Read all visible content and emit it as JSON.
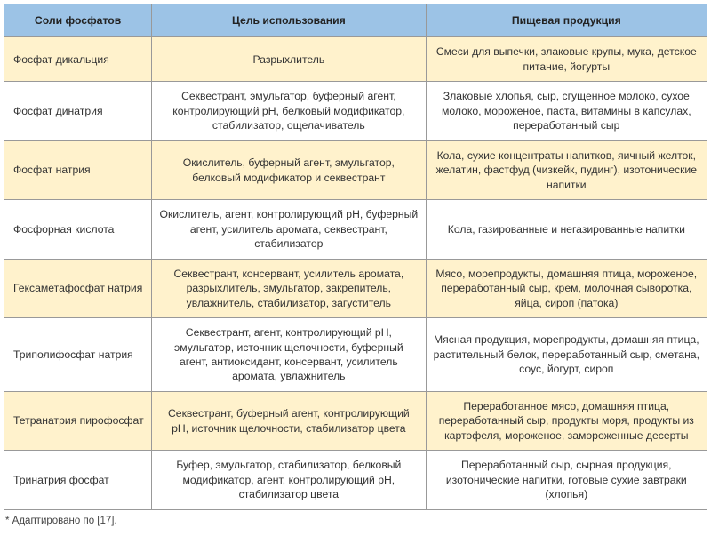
{
  "table": {
    "headers": [
      "Соли фосфатов",
      "Цель использования",
      "Пищевая продукция"
    ],
    "header_bg": "#9cc3e6",
    "row_bg_odd": "#fff2cc",
    "row_bg_even": "#ffffff",
    "border_color": "#999999",
    "font_size": 12.2,
    "column_widths_pct": [
      21,
      39,
      40
    ],
    "rows": [
      {
        "name": "Фосфат дикальция",
        "purpose": "Разрыхлитель",
        "products": "Смеси для выпечки, злаковые крупы, мука, детское питание, йогурты"
      },
      {
        "name": "Фосфат динатрия",
        "purpose": "Секвестрант, эмульгатор, буферный агент, контролирующий pH, белковый модификатор, стабилизатор, ощелачиватель",
        "products": "Злаковые хлопья, сыр, сгущенное молоко, сухое молоко, мороженое, паста, витамины в капсулах, переработанный сыр"
      },
      {
        "name": "Фосфат натрия",
        "purpose": "Окислитель, буферный агент, эмульгатор, белковый модификатор и секвестрант",
        "products": "Кола, сухие концентраты напитков, яичный желток, желатин, фастфуд (чизкейк, пудинг), изотонические напитки"
      },
      {
        "name": "Фосфорная кислота",
        "purpose": "Окислитель, агент, контролирующий pH, буферный агент, усилитель аромата, секвестрант, стабилизатор",
        "products": "Кола, газированные и негазированные напитки"
      },
      {
        "name": "Гексаметафосфат натрия",
        "purpose": "Секвестрант, консервант, усилитель аромата, разрыхлитель, эмульгатор, закрепитель, увлажнитель, стабилизатор, загуститель",
        "products": "Мясо, морепродукты, домашняя птица, мороженое, переработанный сыр, крем, молочная сыворотка, яйца, сироп (патока)"
      },
      {
        "name": "Триполифосфат натрия",
        "purpose": "Секвестрант, агент, контролирующий pH, эмульгатор, источник щелочности, буферный агент, антиоксидант, консервант, усилитель аромата, увлажнитель",
        "products": "Мясная продукция, морепродукты, домашняя птица, растительный белок, переработанный сыр, сметана, соус, йогурт, сироп"
      },
      {
        "name": "Тетранатрия пирофосфат",
        "purpose": "Секвестрант, буферный агент, контролирующий pH, источник щелочности, стабилизатор цвета",
        "products": "Переработанное мясо, домашняя птица, переработанный сыр, продукты моря, продукты из картофеля, мороженое, замороженные десерты"
      },
      {
        "name": "Тринатрия фосфат",
        "purpose": "Буфер, эмульгатор, стабилизатор, белковый модификатор, агент, контролирующий pH, стабилизатор цвета",
        "products": "Переработанный сыр, сырная продукция, изотонические напитки, готовые сухие завтраки (хлопья)"
      }
    ]
  },
  "footnote": "* Адаптировано по [17]."
}
